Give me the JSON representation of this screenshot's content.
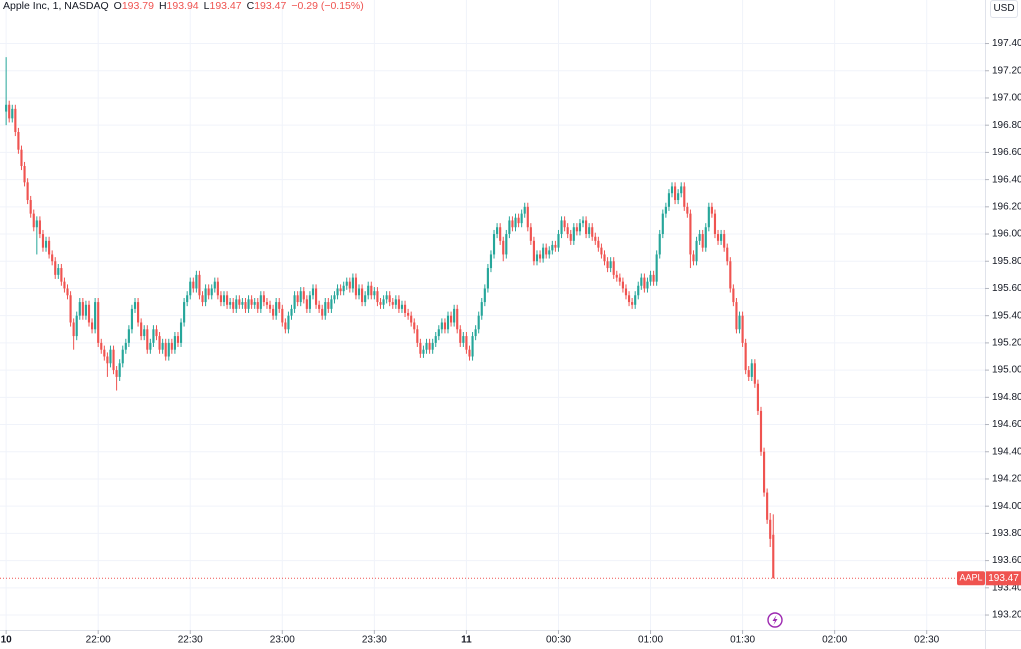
{
  "chart_data": {
    "type": "candlestick",
    "title": "Apple Inc, 1, NASDAQ",
    "ohlc_labels": [
      "O",
      "H",
      "L",
      "C"
    ],
    "change": "−0.29 (−0.15%)",
    "symbol": "AAPL",
    "currency": "USD",
    "up_color": "#26a69a",
    "down_color": "#ef5350",
    "grid": true,
    "xlim": [
      "21:28",
      "02:49"
    ],
    "xticks": [
      {
        "value": "21:30",
        "label": "10"
      },
      "22:00",
      "22:30",
      "23:00",
      "23:30",
      {
        "value": "00:00",
        "label": "11"
      },
      "00:30",
      "01:00",
      "01:30",
      "02:00",
      "02:30"
    ],
    "ylim": [
      193.09,
      197.72
    ],
    "yticks": [
      {
        "value": 193.2,
        "label": "193.20"
      },
      {
        "value": 193.4,
        "label": "193.40"
      },
      {
        "value": 193.6,
        "label": "193.60"
      },
      {
        "value": 193.8,
        "label": "193.80"
      },
      {
        "value": 194,
        "label": "194.00"
      },
      {
        "value": 194.2,
        "label": "194.20"
      },
      {
        "value": 194.4,
        "label": "194.40"
      },
      {
        "value": 194.6,
        "label": "194.60"
      },
      {
        "value": 194.8,
        "label": "194.80"
      },
      {
        "value": 195,
        "label": "195.00"
      },
      {
        "value": 195.2,
        "label": "195.20"
      },
      {
        "value": 195.4,
        "label": "195.40"
      },
      {
        "value": 195.6,
        "label": "195.60"
      },
      {
        "value": 195.8,
        "label": "195.80"
      },
      {
        "value": 196,
        "label": "196.00"
      },
      {
        "value": 196.2,
        "label": "196.20"
      },
      {
        "value": 196.4,
        "label": "196.40"
      },
      {
        "value": 196.6,
        "label": "196.60"
      },
      {
        "value": 196.8,
        "label": "196.80"
      },
      {
        "value": 197,
        "label": "197.00"
      },
      {
        "value": 197.2,
        "label": "197.20"
      },
      {
        "value": 197.4,
        "label": "197.40"
      }
    ],
    "x": [
      "21:30",
      "21:31",
      "21:32",
      "21:33",
      "21:34",
      "21:35",
      "21:36",
      "21:37",
      "21:38",
      "21:39",
      "21:40",
      "21:41",
      "21:42",
      "21:43",
      "21:44",
      "21:45",
      "21:46",
      "21:47",
      "21:48",
      "21:49",
      "21:50",
      "21:51",
      "21:52",
      "21:53",
      "21:54",
      "21:55",
      "21:56",
      "21:57",
      "21:58",
      "21:59",
      "22:00",
      "22:01",
      "22:02",
      "22:03",
      "22:04",
      "22:05",
      "22:06",
      "22:07",
      "22:08",
      "22:09",
      "22:10",
      "22:11",
      "22:12",
      "22:13",
      "22:14",
      "22:15",
      "22:16",
      "22:17",
      "22:18",
      "22:19",
      "22:20",
      "22:21",
      "22:22",
      "22:23",
      "22:24",
      "22:25",
      "22:26",
      "22:27",
      "22:28",
      "22:29",
      "22:30",
      "22:31",
      "22:32",
      "22:33",
      "22:34",
      "22:35",
      "22:36",
      "22:37",
      "22:38",
      "22:39",
      "22:40",
      "22:41",
      "22:42",
      "22:43",
      "22:44",
      "22:45",
      "22:46",
      "22:47",
      "22:48",
      "22:49",
      "22:50",
      "22:51",
      "22:52",
      "22:53",
      "22:54",
      "22:55",
      "22:56",
      "22:57",
      "22:58",
      "22:59",
      "23:00",
      "23:01",
      "23:02",
      "23:03",
      "23:04",
      "23:05",
      "23:06",
      "23:07",
      "23:08",
      "23:09",
      "23:10",
      "23:11",
      "23:12",
      "23:13",
      "23:14",
      "23:15",
      "23:16",
      "23:17",
      "23:18",
      "23:19",
      "23:20",
      "23:21",
      "23:22",
      "23:23",
      "23:24",
      "23:25",
      "23:26",
      "23:27",
      "23:28",
      "23:29",
      "23:30",
      "23:31",
      "23:32",
      "23:33",
      "23:34",
      "23:35",
      "23:36",
      "23:37",
      "23:38",
      "23:39",
      "23:40",
      "23:41",
      "23:42",
      "23:43",
      "23:44",
      "23:45",
      "23:46",
      "23:47",
      "23:48",
      "23:49",
      "23:50",
      "23:51",
      "23:52",
      "23:53",
      "23:54",
      "23:55",
      "23:56",
      "23:57",
      "23:58",
      "23:59",
      "00:00",
      "00:01",
      "00:02",
      "00:03",
      "00:04",
      "00:05",
      "00:06",
      "00:07",
      "00:08",
      "00:09",
      "00:10",
      "00:11",
      "00:12",
      "00:13",
      "00:14",
      "00:15",
      "00:16",
      "00:17",
      "00:18",
      "00:19",
      "00:20",
      "00:21",
      "00:22",
      "00:23",
      "00:24",
      "00:25",
      "00:26",
      "00:27",
      "00:28",
      "00:29",
      "00:30",
      "00:31",
      "00:32",
      "00:33",
      "00:34",
      "00:35",
      "00:36",
      "00:37",
      "00:38",
      "00:39",
      "00:40",
      "00:41",
      "00:42",
      "00:43",
      "00:44",
      "00:45",
      "00:46",
      "00:47",
      "00:48",
      "00:49",
      "00:50",
      "00:51",
      "00:52",
      "00:53",
      "00:54",
      "00:55",
      "00:56",
      "00:57",
      "00:58",
      "00:59",
      "01:00",
      "01:01",
      "01:02",
      "01:03",
      "01:04",
      "01:05",
      "01:06",
      "01:07",
      "01:08",
      "01:09",
      "01:10",
      "01:11",
      "01:12",
      "01:13",
      "01:14",
      "01:15",
      "01:16",
      "01:17",
      "01:18",
      "01:19",
      "01:20",
      "01:21",
      "01:22",
      "01:23",
      "01:24",
      "01:25",
      "01:26",
      "01:27",
      "01:28",
      "01:29",
      "01:30",
      "01:31",
      "01:32",
      "01:33",
      "01:34",
      "01:35",
      "01:36",
      "01:37",
      "01:38",
      "01:39",
      "01:40"
    ],
    "open": [
      196.9,
      196.95,
      196.85,
      196.92,
      196.75,
      196.62,
      196.5,
      196.38,
      196.25,
      196.15,
      196.05,
      196.1,
      196.0,
      195.9,
      195.95,
      195.85,
      195.8,
      195.7,
      195.75,
      195.65,
      195.6,
      195.55,
      195.35,
      195.25,
      195.4,
      195.5,
      195.4,
      195.48,
      195.35,
      195.3,
      195.5,
      195.2,
      195.15,
      195.1,
      195.05,
      195.15,
      195.0,
      194.95,
      195.05,
      195.15,
      195.2,
      195.3,
      195.45,
      195.5,
      195.35,
      195.25,
      195.3,
      195.15,
      195.2,
      195.3,
      195.25,
      195.15,
      195.2,
      195.1,
      195.2,
      195.15,
      195.25,
      195.2,
      195.35,
      195.5,
      195.55,
      195.65,
      195.6,
      195.7,
      195.55,
      195.5,
      195.6,
      195.55,
      195.6,
      195.65,
      195.55,
      195.5,
      195.55,
      195.48,
      195.5,
      195.45,
      195.52,
      195.48,
      195.5,
      195.45,
      195.52,
      195.48,
      195.5,
      195.45,
      195.55,
      195.5,
      195.48,
      195.45,
      195.4,
      195.5,
      195.45,
      195.35,
      195.3,
      195.4,
      195.45,
      195.55,
      195.5,
      195.58,
      195.52,
      195.45,
      195.55,
      195.6,
      195.48,
      195.45,
      195.4,
      195.5,
      195.45,
      195.52,
      195.55,
      195.6,
      195.58,
      195.62,
      195.65,
      195.6,
      195.68,
      195.55,
      195.6,
      195.5,
      195.55,
      195.62,
      195.55,
      195.58,
      195.5,
      195.48,
      195.52,
      195.55,
      195.5,
      195.48,
      195.52,
      195.45,
      195.48,
      195.42,
      195.4,
      195.35,
      195.3,
      195.2,
      195.12,
      195.15,
      195.2,
      195.15,
      195.2,
      195.25,
      195.3,
      195.35,
      195.3,
      195.4,
      195.35,
      195.45,
      195.3,
      195.2,
      195.25,
      195.15,
      195.1,
      195.25,
      195.3,
      195.4,
      195.5,
      195.6,
      195.75,
      195.85,
      196.0,
      196.05,
      195.95,
      195.85,
      196.0,
      196.1,
      196.05,
      196.12,
      196.08,
      196.15,
      196.2,
      196.05,
      195.95,
      195.8,
      195.85,
      195.82,
      195.9,
      195.85,
      195.88,
      195.92,
      195.9,
      196.0,
      196.1,
      196.05,
      196.0,
      195.95,
      196.05,
      196.02,
      196.08,
      196.1,
      196.0,
      196.05,
      195.98,
      195.95,
      195.9,
      195.85,
      195.8,
      195.75,
      195.8,
      195.7,
      195.68,
      195.65,
      195.6,
      195.55,
      195.5,
      195.48,
      195.55,
      195.62,
      195.68,
      195.6,
      195.65,
      195.7,
      195.65,
      195.85,
      196.0,
      196.15,
      196.2,
      196.3,
      196.35,
      196.25,
      196.3,
      196.35,
      196.2,
      196.15,
      195.85,
      195.8,
      195.95,
      196.0,
      195.9,
      196.05,
      196.2,
      196.15,
      196.0,
      195.95,
      196.0,
      195.9,
      195.8,
      195.6,
      195.5,
      195.3,
      195.4,
      195.2,
      195.0,
      194.95,
      195.05,
      194.9,
      194.7,
      194.4,
      194.1,
      193.9,
      193.79
    ],
    "high": [
      197.3,
      196.98,
      196.95,
      196.95,
      196.78,
      196.65,
      196.53,
      196.41,
      196.28,
      196.18,
      196.13,
      196.13,
      196.03,
      195.98,
      195.98,
      195.88,
      195.83,
      195.78,
      195.78,
      195.68,
      195.63,
      195.58,
      195.38,
      195.43,
      195.53,
      195.53,
      195.51,
      195.51,
      195.38,
      195.53,
      195.53,
      195.23,
      195.18,
      195.13,
      195.18,
      195.18,
      195.03,
      195.08,
      195.18,
      195.23,
      195.33,
      195.48,
      195.53,
      195.53,
      195.38,
      195.33,
      195.33,
      195.23,
      195.33,
      195.33,
      195.28,
      195.23,
      195.23,
      195.23,
      195.23,
      195.28,
      195.28,
      195.38,
      195.53,
      195.58,
      195.68,
      195.68,
      195.73,
      195.73,
      195.58,
      195.63,
      195.63,
      195.63,
      195.68,
      195.68,
      195.58,
      195.58,
      195.58,
      195.53,
      195.53,
      195.55,
      195.55,
      195.53,
      195.53,
      195.55,
      195.55,
      195.53,
      195.53,
      195.58,
      195.58,
      195.53,
      195.51,
      195.48,
      195.53,
      195.53,
      195.48,
      195.38,
      195.43,
      195.48,
      195.58,
      195.58,
      195.61,
      195.61,
      195.55,
      195.58,
      195.63,
      195.63,
      195.51,
      195.48,
      195.53,
      195.53,
      195.55,
      195.58,
      195.63,
      195.63,
      195.65,
      195.68,
      195.68,
      195.71,
      195.71,
      195.63,
      195.63,
      195.58,
      195.65,
      195.65,
      195.61,
      195.61,
      195.53,
      195.55,
      195.58,
      195.58,
      195.53,
      195.55,
      195.55,
      195.51,
      195.51,
      195.45,
      195.43,
      195.38,
      195.33,
      195.23,
      195.18,
      195.23,
      195.23,
      195.23,
      195.28,
      195.33,
      195.38,
      195.38,
      195.43,
      195.43,
      195.48,
      195.48,
      195.33,
      195.28,
      195.28,
      195.18,
      195.28,
      195.33,
      195.43,
      195.53,
      195.63,
      195.78,
      195.88,
      196.03,
      196.08,
      196.08,
      195.98,
      196.03,
      196.13,
      196.13,
      196.15,
      196.15,
      196.18,
      196.23,
      196.23,
      196.08,
      195.98,
      195.88,
      195.88,
      195.93,
      195.93,
      195.91,
      195.95,
      195.95,
      196.03,
      196.13,
      196.13,
      196.08,
      196.03,
      196.08,
      196.08,
      196.11,
      196.13,
      196.13,
      196.08,
      196.08,
      196.01,
      195.98,
      195.93,
      195.88,
      195.83,
      195.83,
      195.83,
      195.73,
      195.71,
      195.68,
      195.63,
      195.58,
      195.53,
      195.58,
      195.65,
      195.71,
      195.71,
      195.68,
      195.73,
      195.73,
      195.88,
      196.03,
      196.18,
      196.23,
      196.33,
      196.38,
      196.38,
      196.33,
      196.38,
      196.38,
      196.23,
      196.18,
      195.88,
      195.98,
      196.03,
      196.03,
      196.08,
      196.23,
      196.23,
      196.18,
      196.03,
      196.03,
      196.03,
      195.93,
      195.83,
      195.63,
      195.53,
      195.43,
      195.43,
      195.23,
      195.03,
      195.08,
      195.08,
      194.93,
      194.73,
      194.43,
      194.13,
      193.95,
      193.94
    ],
    "low": [
      196.8,
      196.82,
      196.82,
      196.72,
      196.59,
      196.47,
      196.35,
      196.22,
      196.12,
      196.02,
      195.85,
      195.97,
      195.87,
      195.87,
      195.82,
      195.77,
      195.67,
      195.67,
      195.62,
      195.57,
      195.52,
      195.32,
      195.15,
      195.22,
      195.37,
      195.37,
      195.37,
      195.32,
      195.27,
      195.27,
      195.17,
      195.12,
      195.07,
      194.95,
      195.02,
      194.97,
      194.85,
      194.92,
      195.02,
      195.12,
      195.17,
      195.27,
      195.42,
      195.32,
      195.22,
      195.22,
      195.12,
      195.12,
      195.17,
      195.22,
      195.12,
      195.12,
      195.07,
      195.07,
      195.12,
      195.12,
      195.17,
      195.17,
      195.32,
      195.47,
      195.52,
      195.57,
      195.57,
      195.52,
      195.47,
      195.47,
      195.52,
      195.52,
      195.57,
      195.52,
      195.47,
      195.47,
      195.45,
      195.45,
      195.42,
      195.42,
      195.45,
      195.45,
      195.42,
      195.42,
      195.45,
      195.45,
      195.42,
      195.42,
      195.47,
      195.45,
      195.42,
      195.37,
      195.37,
      195.42,
      195.32,
      195.27,
      195.27,
      195.37,
      195.42,
      195.47,
      195.47,
      195.49,
      195.42,
      195.42,
      195.52,
      195.45,
      195.42,
      195.37,
      195.37,
      195.42,
      195.42,
      195.49,
      195.52,
      195.55,
      195.55,
      195.59,
      195.57,
      195.57,
      195.52,
      195.52,
      195.47,
      195.47,
      195.52,
      195.52,
      195.52,
      195.47,
      195.45,
      195.45,
      195.49,
      195.47,
      195.45,
      195.45,
      195.42,
      195.42,
      195.39,
      195.37,
      195.32,
      195.27,
      195.17,
      195.09,
      195.09,
      195.12,
      195.12,
      195.12,
      195.17,
      195.22,
      195.27,
      195.27,
      195.27,
      195.32,
      195.32,
      195.27,
      195.17,
      195.17,
      195.12,
      195.07,
      195.07,
      195.22,
      195.27,
      195.37,
      195.47,
      195.57,
      195.72,
      195.82,
      195.97,
      195.92,
      195.8,
      195.82,
      195.97,
      196.02,
      196.02,
      196.05,
      196.05,
      196.12,
      196.02,
      195.92,
      195.77,
      195.77,
      195.79,
      195.79,
      195.82,
      195.82,
      195.85,
      195.87,
      195.87,
      195.97,
      196.02,
      195.97,
      195.92,
      195.92,
      195.99,
      195.99,
      196.05,
      195.97,
      195.97,
      195.95,
      195.92,
      195.87,
      195.82,
      195.77,
      195.72,
      195.72,
      195.67,
      195.65,
      195.62,
      195.57,
      195.52,
      195.47,
      195.45,
      195.45,
      195.52,
      195.59,
      195.57,
      195.57,
      195.62,
      195.62,
      195.62,
      195.82,
      195.97,
      196.12,
      196.17,
      196.27,
      196.22,
      196.22,
      196.27,
      196.17,
      196.12,
      195.75,
      195.77,
      195.77,
      195.92,
      195.87,
      195.87,
      196.02,
      196.12,
      195.97,
      195.92,
      195.92,
      195.87,
      195.77,
      195.57,
      195.47,
      195.27,
      195.27,
      195.17,
      194.97,
      194.92,
      194.92,
      194.87,
      194.67,
      194.37,
      194.07,
      193.87,
      193.7,
      193.47
    ],
    "close": [
      196.95,
      196.85,
      196.92,
      196.75,
      196.62,
      196.5,
      196.38,
      196.25,
      196.15,
      196.05,
      196.1,
      196.0,
      195.9,
      195.95,
      195.85,
      195.8,
      195.7,
      195.75,
      195.65,
      195.6,
      195.55,
      195.35,
      195.25,
      195.4,
      195.5,
      195.4,
      195.48,
      195.35,
      195.3,
      195.5,
      195.2,
      195.15,
      195.1,
      195.05,
      195.15,
      195.0,
      194.95,
      195.05,
      195.15,
      195.2,
      195.3,
      195.45,
      195.5,
      195.35,
      195.25,
      195.3,
      195.15,
      195.2,
      195.3,
      195.25,
      195.15,
      195.2,
      195.1,
      195.2,
      195.15,
      195.25,
      195.2,
      195.35,
      195.5,
      195.55,
      195.65,
      195.6,
      195.7,
      195.55,
      195.5,
      195.6,
      195.55,
      195.6,
      195.65,
      195.55,
      195.5,
      195.55,
      195.48,
      195.5,
      195.45,
      195.52,
      195.48,
      195.5,
      195.45,
      195.52,
      195.48,
      195.5,
      195.45,
      195.55,
      195.5,
      195.48,
      195.45,
      195.4,
      195.5,
      195.45,
      195.35,
      195.3,
      195.4,
      195.45,
      195.55,
      195.5,
      195.58,
      195.52,
      195.45,
      195.55,
      195.6,
      195.48,
      195.45,
      195.4,
      195.5,
      195.45,
      195.52,
      195.55,
      195.6,
      195.58,
      195.62,
      195.65,
      195.6,
      195.68,
      195.55,
      195.6,
      195.5,
      195.55,
      195.62,
      195.55,
      195.58,
      195.5,
      195.48,
      195.52,
      195.55,
      195.5,
      195.48,
      195.52,
      195.45,
      195.48,
      195.42,
      195.4,
      195.35,
      195.3,
      195.2,
      195.12,
      195.15,
      195.2,
      195.15,
      195.2,
      195.25,
      195.3,
      195.35,
      195.3,
      195.4,
      195.35,
      195.45,
      195.3,
      195.2,
      195.25,
      195.15,
      195.1,
      195.25,
      195.3,
      195.4,
      195.5,
      195.6,
      195.75,
      195.85,
      196.0,
      196.05,
      195.95,
      195.85,
      196.0,
      196.1,
      196.05,
      196.12,
      196.08,
      196.15,
      196.2,
      196.05,
      195.95,
      195.8,
      195.85,
      195.82,
      195.9,
      195.85,
      195.88,
      195.92,
      195.9,
      196.0,
      196.1,
      196.05,
      196.0,
      195.95,
      196.05,
      196.02,
      196.08,
      196.1,
      196.0,
      196.05,
      195.98,
      195.95,
      195.9,
      195.85,
      195.8,
      195.75,
      195.8,
      195.7,
      195.68,
      195.65,
      195.6,
      195.55,
      195.5,
      195.48,
      195.55,
      195.62,
      195.68,
      195.6,
      195.65,
      195.7,
      195.65,
      195.85,
      196.0,
      196.15,
      196.2,
      196.3,
      196.35,
      196.25,
      196.3,
      196.35,
      196.2,
      196.15,
      195.85,
      195.8,
      195.95,
      196.0,
      195.9,
      196.05,
      196.2,
      196.15,
      196.0,
      195.95,
      196.0,
      195.9,
      195.8,
      195.6,
      195.5,
      195.3,
      195.4,
      195.2,
      195.0,
      194.95,
      195.05,
      194.9,
      194.7,
      194.4,
      194.1,
      193.9,
      193.76,
      193.47
    ]
  }
}
